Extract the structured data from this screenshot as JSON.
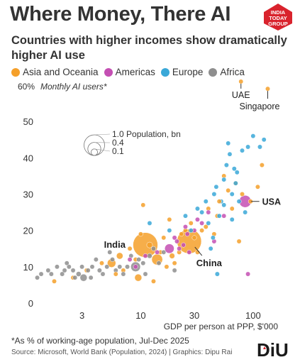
{
  "header": {
    "title": "Where Money, There AI",
    "subtitle": "Countries with higher incomes show dramatically higher AI use",
    "logo_text": [
      "INDIA",
      "TODAY",
      "GROUP"
    ]
  },
  "legend": [
    {
      "label": "Asia and Oceania",
      "color": "#f5a02a"
    },
    {
      "label": "Americas",
      "color": "#c44fb3"
    },
    {
      "label": "Europe",
      "color": "#3aa8d8"
    },
    {
      "label": "Africa",
      "color": "#8e8e8e"
    }
  ],
  "footer": {
    "footnote": "*As % of working-age population, Jul-Dec 2025",
    "source": "Source: Microsoft, World Bank (Population, 2024) | Graphics: Dipu Rai",
    "brand": "DiU"
  },
  "chart_data": {
    "type": "scatter",
    "title": "Where Money, There AI",
    "ylabel_value": "60%",
    "ylabel": "Monthly AI users*",
    "xlabel": "GDP per person at PPP, $'000",
    "x_scale": "log",
    "xlim": [
      1,
      140
    ],
    "ylim": [
      0,
      60
    ],
    "x_ticks": [
      3,
      10,
      30,
      100
    ],
    "y_ticks": [
      0,
      10,
      20,
      30,
      40,
      50
    ],
    "size_legend": {
      "title": "Population, bn",
      "values": [
        1.0,
        0.4,
        0.1
      ]
    },
    "labeled_points": [
      {
        "label": "India",
        "x": 11,
        "y": 16,
        "pop": 1.45,
        "region": "Asia and Oceania"
      },
      {
        "label": "China",
        "x": 27,
        "y": 17,
        "pop": 1.41,
        "region": "Asia and Oceania"
      },
      {
        "label": "USA",
        "x": 85,
        "y": 28,
        "pop": 0.34,
        "region": "Americas"
      },
      {
        "label": "UAE",
        "x": 78,
        "y": 61,
        "pop": 0.01,
        "region": "Asia and Oceania"
      },
      {
        "label": "Singapore",
        "x": 135,
        "y": 59,
        "pop": 0.006,
        "region": "Asia and Oceania"
      }
    ],
    "series": [
      {
        "name": "Asia and Oceania",
        "color": "#f5a02a",
        "points": [
          [
            1.7,
            6,
            0.02
          ],
          [
            2.5,
            7,
            0.03
          ],
          [
            3.3,
            9,
            0.04
          ],
          [
            4.5,
            11,
            0.03
          ],
          [
            5.5,
            11,
            0.17
          ],
          [
            6.5,
            13,
            0.1
          ],
          [
            7,
            9,
            0.04
          ],
          [
            8,
            15,
            0.05
          ],
          [
            9,
            12,
            0.03
          ],
          [
            9.5,
            7,
            0.12
          ],
          [
            10,
            19,
            0.04
          ],
          [
            12,
            16,
            0.08
          ],
          [
            14,
            12,
            0.28
          ],
          [
            15,
            14,
            0.03
          ],
          [
            16,
            18,
            0.04
          ],
          [
            17,
            10,
            0.03
          ],
          [
            18,
            23,
            0.03
          ],
          [
            19,
            13,
            0.07
          ],
          [
            20,
            11,
            0.03
          ],
          [
            22,
            14,
            0.05
          ],
          [
            23,
            19,
            0.03
          ],
          [
            25,
            20,
            0.04
          ],
          [
            28,
            22,
            0.03
          ],
          [
            30,
            18,
            0.03
          ],
          [
            32,
            14,
            0.02
          ],
          [
            35,
            20,
            0.02
          ],
          [
            38,
            21,
            0.05
          ],
          [
            40,
            26,
            0.01
          ],
          [
            45,
            19,
            0.02
          ],
          [
            48,
            24,
            0.03
          ],
          [
            50,
            28,
            0.02
          ],
          [
            55,
            35,
            0.02
          ],
          [
            60,
            31,
            0.02
          ],
          [
            65,
            26,
            0.02
          ],
          [
            70,
            33,
            0.02
          ],
          [
            75,
            17,
            0.02
          ],
          [
            80,
            30,
            0.02
          ],
          [
            95,
            28,
            0.01
          ],
          [
            110,
            32,
            0.01
          ],
          [
            120,
            38,
            0.01
          ],
          [
            10.5,
            27,
            0.01
          ],
          [
            6,
            8,
            0.02
          ],
          [
            13,
            6,
            0.02
          ]
        ]
      },
      {
        "name": "Americas",
        "color": "#c44fb3",
        "points": [
          [
            8,
            12,
            0.01
          ],
          [
            9,
            10,
            0.02
          ],
          [
            11,
            13,
            0.01
          ],
          [
            14,
            14,
            0.02
          ],
          [
            18,
            15,
            0.21
          ],
          [
            20,
            18,
            0.05
          ],
          [
            21,
            17,
            0.02
          ],
          [
            22,
            15,
            0.02
          ],
          [
            24,
            16,
            0.03
          ],
          [
            25,
            21,
            0.02
          ],
          [
            26,
            19,
            0.03
          ],
          [
            27,
            14,
            0.02
          ],
          [
            30,
            20,
            0.02
          ],
          [
            32,
            23,
            0.02
          ],
          [
            35,
            22,
            0.02
          ],
          [
            40,
            25,
            0.01
          ],
          [
            45,
            17,
            0.01
          ],
          [
            55,
            24,
            0.04
          ],
          [
            90,
            8,
            0.01
          ]
        ]
      },
      {
        "name": "Europe",
        "color": "#3aa8d8",
        "points": [
          [
            12,
            22,
            0.01
          ],
          [
            18,
            20,
            0.01
          ],
          [
            25,
            24,
            0.01
          ],
          [
            28,
            20,
            0.01
          ],
          [
            32,
            26,
            0.01
          ],
          [
            35,
            25,
            0.02
          ],
          [
            38,
            28,
            0.02
          ],
          [
            40,
            22,
            0.01
          ],
          [
            42,
            15,
            0.01
          ],
          [
            45,
            30,
            0.02
          ],
          [
            47,
            32,
            0.01
          ],
          [
            48,
            8,
            0.05
          ],
          [
            50,
            24,
            0.02
          ],
          [
            52,
            28,
            0.03
          ],
          [
            55,
            34,
            0.02
          ],
          [
            58,
            38,
            0.02
          ],
          [
            60,
            44,
            0.02
          ],
          [
            62,
            41,
            0.01
          ],
          [
            65,
            30,
            0.02
          ],
          [
            68,
            37,
            0.02
          ],
          [
            70,
            33,
            0.02
          ],
          [
            72,
            36,
            0.01
          ],
          [
            75,
            28,
            0.02
          ],
          [
            80,
            42,
            0.01
          ],
          [
            85,
            25,
            0.01
          ],
          [
            90,
            43,
            0.01
          ],
          [
            100,
            46,
            0.01
          ],
          [
            115,
            43,
            0.01
          ],
          [
            125,
            45,
            0.01
          ],
          [
            65,
            23,
            0.01
          ],
          [
            55,
            27,
            0.01
          ],
          [
            44,
            18,
            0.01
          ]
        ]
      },
      {
        "name": "Africa",
        "color": "#8e8e8e",
        "points": [
          [
            1.2,
            7,
            0.03
          ],
          [
            1.3,
            8,
            0.02
          ],
          [
            1.5,
            9,
            0.03
          ],
          [
            1.6,
            8,
            0.02
          ],
          [
            1.8,
            10,
            0.03
          ],
          [
            2,
            8,
            0.05
          ],
          [
            2.1,
            9,
            0.02
          ],
          [
            2.3,
            10,
            0.04
          ],
          [
            2.5,
            9,
            0.03
          ],
          [
            2.6,
            7,
            0.02
          ],
          [
            2.8,
            8,
            0.06
          ],
          [
            3,
            10,
            0.02
          ],
          [
            3.1,
            7,
            0.12
          ],
          [
            3.4,
            9,
            0.03
          ],
          [
            3.7,
            10,
            0.04
          ],
          [
            4,
            12,
            0.02
          ],
          [
            4.3,
            9,
            0.05
          ],
          [
            4.6,
            8,
            0.03
          ],
          [
            5,
            10,
            0.02
          ],
          [
            5.3,
            14,
            0.01
          ],
          [
            5.6,
            12,
            0.03
          ],
          [
            6,
            9,
            0.03
          ],
          [
            6.5,
            10,
            0.02
          ],
          [
            7,
            8,
            0.04
          ],
          [
            7.6,
            10,
            0.05
          ],
          [
            8.2,
            13,
            0.02
          ],
          [
            9,
            10,
            0.22
          ],
          [
            9.6,
            12,
            0.03
          ],
          [
            10.5,
            11,
            0.05
          ],
          [
            11,
            8,
            0.02
          ],
          [
            12,
            13,
            0.06
          ],
          [
            13,
            15,
            0.02
          ],
          [
            14.5,
            11,
            0.01
          ],
          [
            16,
            14,
            0.01
          ],
          [
            20,
            9,
            0.01
          ],
          [
            2.2,
            11,
            0.02
          ],
          [
            3.6,
            7,
            0.02
          ]
        ]
      }
    ]
  }
}
